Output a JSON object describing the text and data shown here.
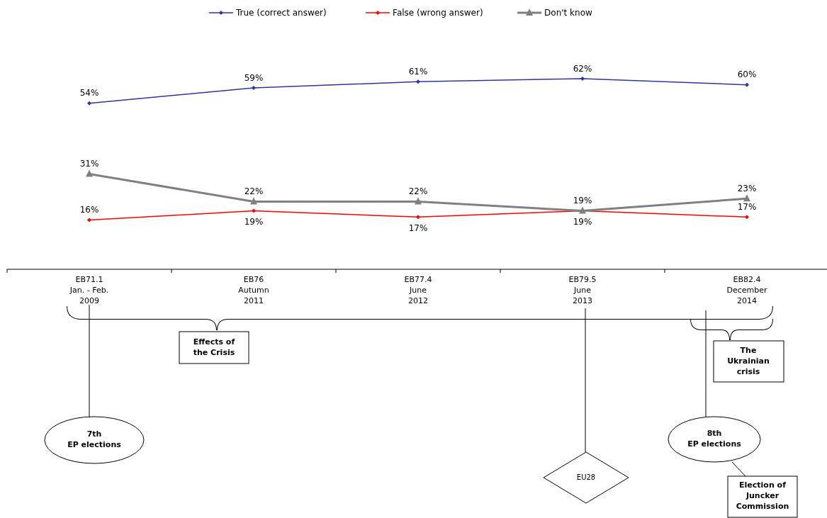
{
  "chart_data": {
    "type": "line",
    "categories": [
      "EB71.1\nJan. - Feb.\n2009",
      "EB76\nAutumn\n2011",
      "EB77.4\nJune\n2012",
      "EB79.5\nJune\n2013",
      "EB82.4\nDecember\n2014"
    ],
    "series": [
      {
        "name": "True (correct answer)",
        "color": "#333399",
        "marker": "diamond",
        "values": [
          54,
          59,
          61,
          62,
          60
        ],
        "value_labels": [
          "54%",
          "59%",
          "61%",
          "62%",
          "60%"
        ]
      },
      {
        "name": "False (wrong answer)",
        "color": "#ff0000",
        "marker": "diamond",
        "values": [
          16,
          19,
          17,
          19,
          17
        ],
        "value_labels": [
          "16%",
          "19%",
          "17%",
          "19%",
          "17%"
        ]
      },
      {
        "name": "Don't know",
        "color": "#808080",
        "marker": "triangle",
        "values": [
          31,
          22,
          22,
          19,
          23
        ],
        "value_labels": [
          "31%",
          "22%",
          "22%",
          "19%",
          "23%"
        ]
      }
    ],
    "legend": "top",
    "annotations": [
      "Effects of\nthe Crisis",
      "The\nUkrainian\ncrisis",
      "7th\nEP elections",
      "EU28",
      "8th\nEP elections",
      "Election of\nJuncker\nCommission"
    ]
  }
}
